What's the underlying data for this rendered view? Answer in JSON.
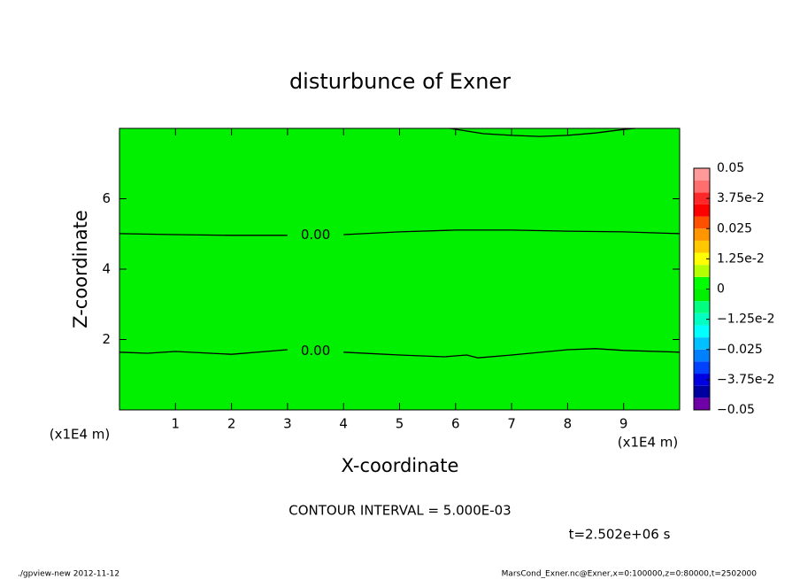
{
  "chart_data": {
    "type": "contour",
    "title": "disturbunce of Exner",
    "x_label": "X-coordinate",
    "y_label": "Z-coordinate",
    "x_unit": "(x1E4 m)",
    "y_unit": "(x1E4 m)",
    "xlim": [
      0,
      10
    ],
    "ylim": [
      0,
      8
    ],
    "xticks": [
      1,
      2,
      3,
      4,
      5,
      6,
      7,
      8,
      9
    ],
    "yticks": [
      2,
      4,
      6
    ],
    "field_color": "#00f000",
    "line_color": "#000000",
    "contours": [
      {
        "level": 0,
        "level_label": "0.00",
        "x": [
          0,
          1,
          2,
          3,
          3.5,
          4,
          5,
          6,
          7,
          8,
          9,
          10
        ],
        "y": [
          5.01,
          4.98,
          4.96,
          4.96,
          null,
          4.98,
          5.06,
          5.11,
          5.11,
          5.08,
          5.06,
          5.01
        ]
      },
      {
        "level": 0,
        "level_label": "0.00",
        "x": [
          0,
          0.5,
          1,
          2,
          3,
          3.5,
          4,
          5,
          5.8,
          6.2,
          6.4,
          7,
          8,
          8.5,
          9,
          10
        ],
        "y": [
          1.64,
          1.61,
          1.66,
          1.58,
          1.71,
          null,
          1.64,
          1.56,
          1.51,
          1.56,
          1.48,
          1.56,
          1.71,
          1.74,
          1.69,
          1.64
        ]
      },
      {
        "x": [
          5.9,
          6.5,
          7,
          7.5,
          8,
          8.5,
          9,
          9.2
        ],
        "y": [
          8,
          7.85,
          7.8,
          7.77,
          7.8,
          7.87,
          7.97,
          8
        ]
      }
    ],
    "colorbar": {
      "levels": [
        -0.05,
        -0.045,
        -0.04,
        -0.035,
        -0.03,
        -0.025,
        -0.02,
        -0.015,
        -0.01,
        -0.005,
        0,
        0.005,
        0.01,
        0.015,
        0.02,
        0.025,
        0.03,
        0.035,
        0.04,
        0.045,
        0.05
      ],
      "colors": [
        "#7000a8",
        "#0000a0",
        "#0000e0",
        "#0040ff",
        "#0080ff",
        "#00c0ff",
        "#00ffff",
        "#00ffc0",
        "#00ff80",
        "#00f000",
        "#00ff00",
        "#b4ff00",
        "#ffff00",
        "#ffc800",
        "#ff9600",
        "#ff5000",
        "#ff0000",
        "#ff2828",
        "#ff6e6e",
        "#ff9a9a"
      ],
      "ticks": [
        {
          "value": -0.05,
          "label": "−0.05"
        },
        {
          "value": -0.0375,
          "label": "−3.75e-2"
        },
        {
          "value": -0.025,
          "label": "−0.025"
        },
        {
          "value": -0.0125,
          "label": "−1.25e-2"
        },
        0,
        {
          "value": 0.0125,
          "label": "1.25e-2"
        },
        0.025,
        {
          "value": 0.0375,
          "label": "3.75e-2"
        },
        0.05
      ]
    },
    "annotations": [
      "CONTOUR INTERVAL = 5.000E-03",
      "t=2.502e+06 s"
    ],
    "footer_left": "./gpview-new  2012-11-12",
    "footer_right": "MarsCond_Exner.nc@Exner,x=0:100000,z=0:80000,t=2502000"
  }
}
